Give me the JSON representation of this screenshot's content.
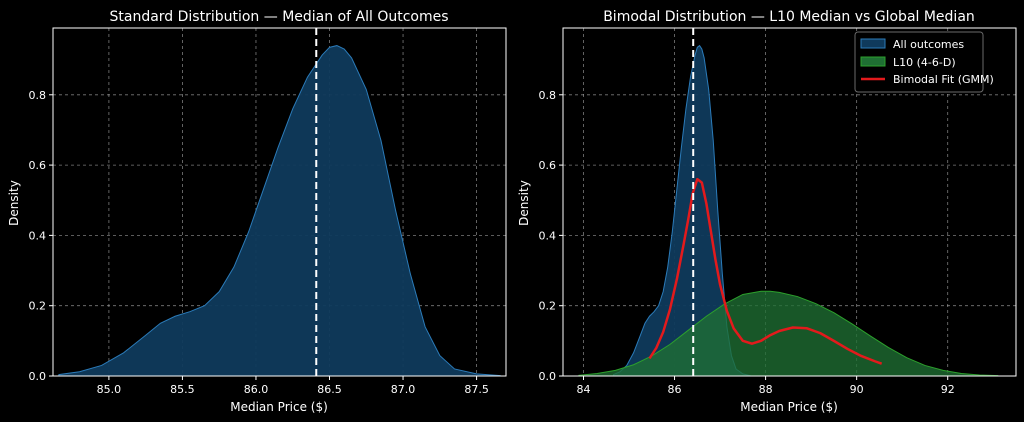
{
  "chart_data": [
    {
      "type": "area",
      "title": "Standard Distribution — Median of All Outcomes",
      "xlabel": "Median Price ($)",
      "ylabel": "Density",
      "xlim": [
        84.62,
        87.7
      ],
      "ylim": [
        0,
        0.99
      ],
      "xticks": [
        85.0,
        85.5,
        86.0,
        86.5,
        87.0,
        87.5
      ],
      "xtick_labels": [
        "85.0",
        "85.5",
        "86.0",
        "86.5",
        "87.0",
        "87.5"
      ],
      "yticks": [
        0.0,
        0.2,
        0.4,
        0.6,
        0.8
      ],
      "ytick_labels": [
        "0.0",
        "0.2",
        "0.4",
        "0.6",
        "0.8"
      ],
      "grid": true,
      "series": [
        {
          "name": "All outcomes",
          "kind": "kde_fill",
          "x": [
            84.66,
            84.8,
            84.95,
            85.1,
            85.25,
            85.35,
            85.45,
            85.55,
            85.65,
            85.75,
            85.85,
            85.95,
            86.05,
            86.15,
            86.25,
            86.35,
            86.45,
            86.5,
            86.55,
            86.6,
            86.65,
            86.75,
            86.85,
            86.95,
            87.05,
            87.15,
            87.25,
            87.35,
            87.5,
            87.66
          ],
          "y": [
            0.004,
            0.012,
            0.03,
            0.066,
            0.116,
            0.15,
            0.17,
            0.183,
            0.2,
            0.24,
            0.31,
            0.41,
            0.53,
            0.65,
            0.76,
            0.85,
            0.913,
            0.935,
            0.94,
            0.93,
            0.905,
            0.815,
            0.67,
            0.47,
            0.29,
            0.14,
            0.058,
            0.02,
            0.006,
            0.001
          ]
        }
      ],
      "reference_lines": [
        {
          "name": "Median",
          "x": 86.41
        }
      ]
    },
    {
      "type": "area",
      "title": "Bimodal Distribution — L10 Median vs Global Median",
      "xlabel": "Median Price ($)",
      "ylabel": "Density",
      "xlim": [
        83.55,
        93.5
      ],
      "ylim": [
        0,
        0.99
      ],
      "xticks": [
        84,
        86,
        88,
        90,
        92
      ],
      "xtick_labels": [
        "84",
        "86",
        "88",
        "90",
        "92"
      ],
      "yticks": [
        0.0,
        0.2,
        0.4,
        0.6,
        0.8
      ],
      "ytick_labels": [
        "0.0",
        "0.2",
        "0.4",
        "0.6",
        "0.8"
      ],
      "grid": true,
      "legend_position": "top-right",
      "series": [
        {
          "name": "All outcomes",
          "kind": "kde_fill",
          "x": [
            84.66,
            84.8,
            84.95,
            85.1,
            85.25,
            85.35,
            85.45,
            85.55,
            85.65,
            85.75,
            85.85,
            85.95,
            86.05,
            86.15,
            86.25,
            86.35,
            86.45,
            86.5,
            86.55,
            86.6,
            86.65,
            86.75,
            86.85,
            86.95,
            87.05,
            87.15,
            87.25,
            87.35,
            87.5,
            87.66
          ],
          "y": [
            0.004,
            0.012,
            0.03,
            0.066,
            0.116,
            0.15,
            0.17,
            0.183,
            0.2,
            0.24,
            0.31,
            0.41,
            0.53,
            0.65,
            0.76,
            0.85,
            0.913,
            0.935,
            0.94,
            0.93,
            0.905,
            0.815,
            0.67,
            0.47,
            0.29,
            0.14,
            0.058,
            0.02,
            0.006,
            0.001
          ]
        },
        {
          "name": "L10 (4-6-D)",
          "kind": "kde_fill",
          "x": [
            83.9,
            84.3,
            84.7,
            85.1,
            85.5,
            85.9,
            86.3,
            86.7,
            87.1,
            87.5,
            87.9,
            88.1,
            88.3,
            88.7,
            89.1,
            89.5,
            89.9,
            90.3,
            90.7,
            91.1,
            91.5,
            91.9,
            92.3,
            92.7,
            93.1
          ],
          "y": [
            0.002,
            0.007,
            0.016,
            0.032,
            0.057,
            0.09,
            0.13,
            0.17,
            0.205,
            0.232,
            0.241,
            0.241,
            0.238,
            0.226,
            0.206,
            0.18,
            0.148,
            0.114,
            0.081,
            0.052,
            0.03,
            0.016,
            0.007,
            0.003,
            0.001
          ]
        },
        {
          "name": "Bimodal Fit (GMM)",
          "kind": "line",
          "x": [
            85.45,
            85.6,
            85.75,
            85.9,
            86.05,
            86.2,
            86.3,
            86.4,
            86.5,
            86.6,
            86.7,
            86.8,
            86.9,
            87.0,
            87.15,
            87.3,
            87.5,
            87.7,
            87.9,
            88.1,
            88.3,
            88.6,
            88.9,
            89.2,
            89.5,
            89.8,
            90.1,
            90.4,
            90.55
          ],
          "y": [
            0.05,
            0.08,
            0.125,
            0.19,
            0.275,
            0.375,
            0.445,
            0.52,
            0.56,
            0.55,
            0.49,
            0.41,
            0.33,
            0.26,
            0.185,
            0.135,
            0.1,
            0.092,
            0.1,
            0.116,
            0.128,
            0.138,
            0.136,
            0.122,
            0.1,
            0.077,
            0.057,
            0.042,
            0.035
          ]
        }
      ],
      "reference_lines": [
        {
          "name": "Global Median",
          "x": 86.41
        }
      ]
    }
  ],
  "style": {
    "background": "#000000",
    "axes_edge": "#ffffff",
    "grid_color": "#b0b0b0",
    "all_outcomes_fill": "#0f3a5c",
    "all_outcomes_edge": "#2b7bb9",
    "l10_fill": "#1f6f33",
    "l10_edge": "#2ca02c",
    "gmm_line": "#e31a1c",
    "median_line": "#ffffff"
  }
}
